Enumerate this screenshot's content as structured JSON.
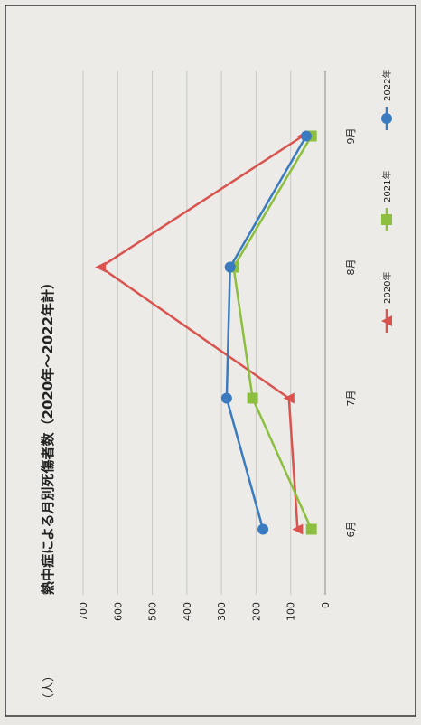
{
  "chart_data": {
    "type": "line",
    "title": "熱中症による月別死傷者数（2020年〜2022年計）",
    "ylabel": "（人）",
    "categories": [
      "6月",
      "7月",
      "8月",
      "9月"
    ],
    "ylim": [
      0,
      700
    ],
    "yticks": [
      0,
      100,
      200,
      300,
      400,
      500,
      600,
      700
    ],
    "grid": true,
    "legend_position": "bottom",
    "orientation": "rotated-90-clockwise",
    "series": [
      {
        "name": "2020年",
        "values": [
          80,
          105,
          650,
          65
        ],
        "color": "#d9534f",
        "marker": "triangle"
      },
      {
        "name": "2021年",
        "values": [
          40,
          210,
          265,
          40
        ],
        "color": "#8cbf3f",
        "marker": "square"
      },
      {
        "name": "2022年",
        "values": [
          180,
          285,
          275,
          55
        ],
        "color": "#3a7bbf",
        "marker": "circle"
      }
    ]
  }
}
